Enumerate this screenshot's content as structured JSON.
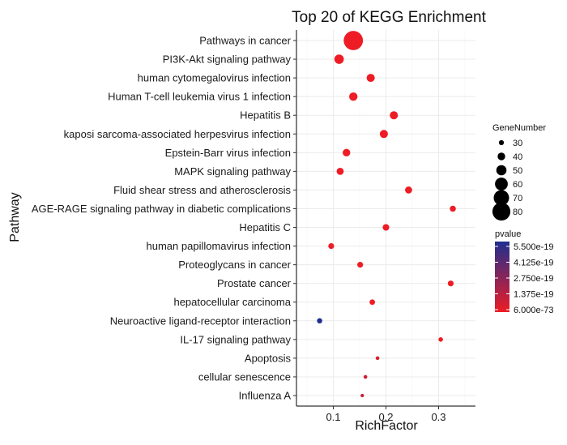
{
  "chart_data": {
    "type": "scatter",
    "title": "Top 20 of KEGG Enrichment",
    "xlabel": "RichFactor",
    "ylabel": "Pathway",
    "xlim": [
      0.03,
      0.37
    ],
    "xticks": [
      0.1,
      0.2,
      0.3
    ],
    "xtick_labels": [
      "0.1",
      "0.2",
      "0.3"
    ],
    "grid": true,
    "points": [
      {
        "pathway": "Pathways in cancer",
        "rich_factor": 0.138,
        "gene_number": 85,
        "pvalue": 6e-73
      },
      {
        "pathway": "PI3K-Akt signaling pathway",
        "rich_factor": 0.111,
        "gene_number": 47,
        "pvalue": 6e-30
      },
      {
        "pathway": "human cytomegalovirus infection",
        "rich_factor": 0.171,
        "gene_number": 42,
        "pvalue": 5e-30
      },
      {
        "pathway": "Human T-cell leukemia virus 1 infection",
        "rich_factor": 0.138,
        "gene_number": 43,
        "pvalue": 4e-28
      },
      {
        "pathway": "Hepatitis B",
        "rich_factor": 0.215,
        "gene_number": 42,
        "pvalue": 3e-28
      },
      {
        "pathway": "kaposi sarcoma-associated herpesvirus infection",
        "rich_factor": 0.196,
        "gene_number": 42,
        "pvalue": 2e-27
      },
      {
        "pathway": "Epstein-Barr virus infection",
        "rich_factor": 0.125,
        "gene_number": 40,
        "pvalue": 1.5e-26
      },
      {
        "pathway": "MAPK signaling pathway",
        "rich_factor": 0.113,
        "gene_number": 38,
        "pvalue": 4e-26
      },
      {
        "pathway": "Fluid shear stress and atherosclerosis",
        "rich_factor": 0.243,
        "gene_number": 38,
        "pvalue": 1e-25
      },
      {
        "pathway": "AGE-RAGE signaling pathway in diabetic complications",
        "rich_factor": 0.327,
        "gene_number": 34,
        "pvalue": 4e-25
      },
      {
        "pathway": "Hepatitis C",
        "rich_factor": 0.2,
        "gene_number": 36,
        "pvalue": 1e-24
      },
      {
        "pathway": "human papillomavirus infection",
        "rich_factor": 0.096,
        "gene_number": 33,
        "pvalue": 5e-24
      },
      {
        "pathway": "Proteoglycans in cancer",
        "rich_factor": 0.151,
        "gene_number": 33,
        "pvalue": 1e-23
      },
      {
        "pathway": "Prostate cancer",
        "rich_factor": 0.323,
        "gene_number": 33,
        "pvalue": 3e-23
      },
      {
        "pathway": "hepatocellular carcinoma",
        "rich_factor": 0.174,
        "gene_number": 32,
        "pvalue": 1e-22
      },
      {
        "pathway": "Neuroactive ligand-receptor interaction",
        "rich_factor": 0.074,
        "gene_number": 31,
        "pvalue": 5.5e-19
      },
      {
        "pathway": "IL-17 signaling pathway",
        "rich_factor": 0.304,
        "gene_number": 28,
        "pvalue": 2e-21
      },
      {
        "pathway": "Apoptosis",
        "rich_factor": 0.184,
        "gene_number": 25,
        "pvalue": 5e-20
      },
      {
        "pathway": "cellular senescence",
        "rich_factor": 0.161,
        "gene_number": 25,
        "pvalue": 8e-20
      },
      {
        "pathway": "Influenza A",
        "rich_factor": 0.155,
        "gene_number": 24,
        "pvalue": 1e-19
      }
    ],
    "legend_size": {
      "title": "GeneNumber",
      "values": [
        30,
        40,
        50,
        60,
        70,
        80
      ],
      "labels": [
        "30",
        "40",
        "50",
        "60",
        "70",
        "80"
      ],
      "placement": "right"
    },
    "legend_color": {
      "title": "pvalue",
      "labels": [
        "5.500e-19",
        "4.125e-19",
        "2.750e-19",
        "1.375e-19",
        "6.000e-73"
      ],
      "low_color": "#ee1c25",
      "high_color": "#1f2f8f",
      "placement": "right"
    },
    "colors": {
      "background": "#ffffff",
      "grid": "#ebebeb"
    }
  }
}
